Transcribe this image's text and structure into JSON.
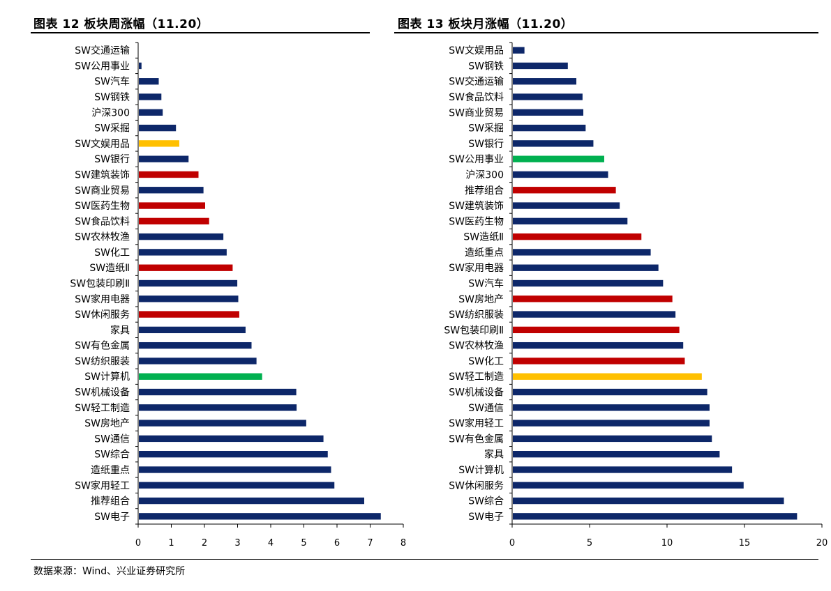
{
  "header": {
    "left_title": "图表 12 板块周涨幅（11.20）",
    "right_title": "图表 13 板块月涨幅（11.20）"
  },
  "footer": {
    "source": "数据来源：Wind、兴业证券研究所"
  },
  "colors": {
    "navy": "#0d2769",
    "red": "#c00000",
    "yellow": "#ffc000",
    "green": "#00b050"
  },
  "chart_data": [
    {
      "type": "bar",
      "orientation": "horizontal",
      "title": "图表 12 板块周涨幅（11.20）",
      "xlim": [
        0,
        8
      ],
      "xticks": [
        0,
        1,
        2,
        3,
        4,
        5,
        6,
        7,
        8
      ],
      "grid": false,
      "categories": [
        "SW交通运输",
        "SW公用事业",
        "SW汽车",
        "SW钢铁",
        "沪深300",
        "SW采掘",
        "SW文娱用品",
        "SW银行",
        "SW建筑装饰",
        "SW商业贸易",
        "SW医药生物",
        "SW食品饮料",
        "SW农林牧渔",
        "SW化工",
        "SW造纸Ⅱ",
        "SW包装印刷Ⅱ",
        "SW家用电器",
        "SW休闲服务",
        "家具",
        "SW有色金属",
        "SW纺织服装",
        "SW计算机",
        "SW机械设备",
        "SW轻工制造",
        "SW房地产",
        "SW通信",
        "SW综合",
        "造纸重点",
        "SW家用轻工",
        "推荐组合",
        "SW电子"
      ],
      "values": [
        0.0,
        0.08,
        0.6,
        0.68,
        0.72,
        1.12,
        1.22,
        1.5,
        1.8,
        1.95,
        2.0,
        2.12,
        2.55,
        2.65,
        2.83,
        2.97,
        3.0,
        3.03,
        3.22,
        3.4,
        3.55,
        3.72,
        4.75,
        4.76,
        5.05,
        5.57,
        5.7,
        5.8,
        5.9,
        6.8,
        7.3
      ],
      "bar_colors": [
        "navy",
        "navy",
        "navy",
        "navy",
        "navy",
        "navy",
        "yellow",
        "navy",
        "red",
        "navy",
        "red",
        "red",
        "navy",
        "navy",
        "red",
        "navy",
        "navy",
        "red",
        "navy",
        "navy",
        "navy",
        "green",
        "navy",
        "navy",
        "navy",
        "navy",
        "navy",
        "navy",
        "navy",
        "navy",
        "navy"
      ]
    },
    {
      "type": "bar",
      "orientation": "horizontal",
      "title": "图表 13 板块月涨幅（11.20）",
      "xlim": [
        0,
        20
      ],
      "xticks": [
        0,
        5,
        10,
        15,
        20
      ],
      "grid": false,
      "categories": [
        "SW文娱用品",
        "SW钢铁",
        "SW交通运输",
        "SW食品饮料",
        "SW商业贸易",
        "SW采掘",
        "SW银行",
        "SW公用事业",
        "沪深300",
        "推荐组合",
        "SW建筑装饰",
        "SW医药生物",
        "SW造纸Ⅱ",
        "造纸重点",
        "SW家用电器",
        "SW汽车",
        "SW房地产",
        "SW纺织服装",
        "SW包装印刷Ⅱ",
        "SW农林牧渔",
        "SW化工",
        "SW轻工制造",
        "SW机械设备",
        "SW通信",
        "SW家用轻工",
        "SW有色金属",
        "家具",
        "SW计算机",
        "SW休闲服务",
        "SW综合",
        "SW电子"
      ],
      "values": [
        0.75,
        3.55,
        4.1,
        4.5,
        4.55,
        4.7,
        5.2,
        5.9,
        6.15,
        6.65,
        6.9,
        7.4,
        8.3,
        8.9,
        9.4,
        9.7,
        10.3,
        10.5,
        10.75,
        11.0,
        11.1,
        12.2,
        12.55,
        12.7,
        12.7,
        12.85,
        13.35,
        14.15,
        14.9,
        17.5,
        18.35
      ],
      "bar_colors": [
        "navy",
        "navy",
        "navy",
        "navy",
        "navy",
        "navy",
        "navy",
        "green",
        "navy",
        "red",
        "navy",
        "navy",
        "red",
        "navy",
        "navy",
        "navy",
        "red",
        "navy",
        "red",
        "navy",
        "red",
        "yellow",
        "navy",
        "navy",
        "navy",
        "navy",
        "navy",
        "navy",
        "navy",
        "navy",
        "navy"
      ]
    }
  ]
}
